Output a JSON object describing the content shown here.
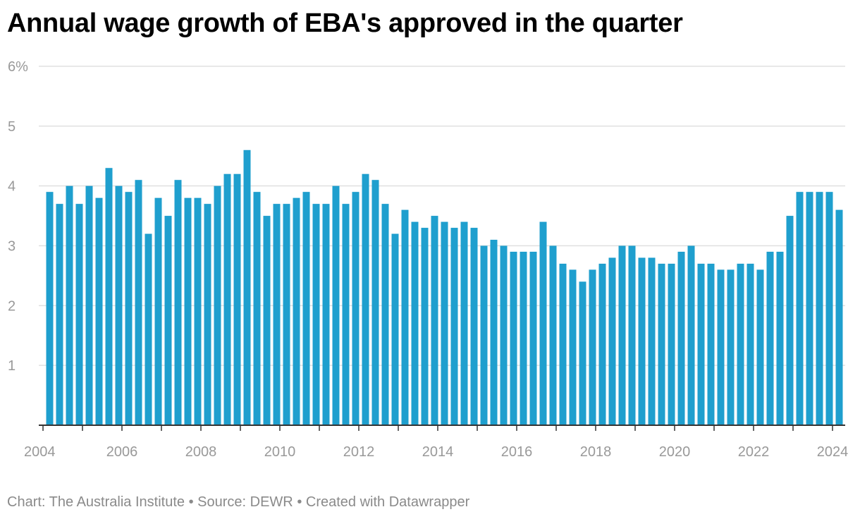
{
  "title": "Annual wage growth of EBA's approved in the quarter",
  "footer": {
    "chart_label": "Chart:",
    "chart_source": "The Australia Institute",
    "separator": "•",
    "source_label": "Source:",
    "source_value": "DEWR",
    "created_with": "Created with Datawrapper"
  },
  "colors": {
    "bar": "#1F9FCE",
    "grid": "#e0e0e0",
    "axis": "#333333",
    "tick_text": "#999999"
  },
  "chart_data": {
    "type": "bar",
    "title": "Annual wage growth of EBA's approved in the quarter",
    "xlabel": "",
    "ylabel": "",
    "ylim": [
      0,
      6
    ],
    "yticks": [
      {
        "value": 6,
        "label": "6%"
      },
      {
        "value": 5,
        "label": "5"
      },
      {
        "value": 4,
        "label": "4"
      },
      {
        "value": 3,
        "label": "3"
      },
      {
        "value": 2,
        "label": "2"
      },
      {
        "value": 1,
        "label": "1"
      }
    ],
    "xticks": [
      {
        "value": 2004,
        "label": "2004"
      },
      {
        "value": 2006,
        "label": "2006"
      },
      {
        "value": 2008,
        "label": "2008"
      },
      {
        "value": 2010,
        "label": "2010"
      },
      {
        "value": 2012,
        "label": "2012"
      },
      {
        "value": 2014,
        "label": "2014"
      },
      {
        "value": 2016,
        "label": "2016"
      },
      {
        "value": 2018,
        "label": "2018"
      },
      {
        "value": 2020,
        "label": "2020"
      },
      {
        "value": 2022,
        "label": "2022"
      },
      {
        "value": 2024,
        "label": "2024"
      }
    ],
    "grid": true,
    "x_start": "2004 Q1",
    "frequency": "quarterly",
    "values": [
      3.9,
      3.7,
      4.0,
      3.7,
      4.0,
      3.8,
      4.3,
      4.0,
      3.9,
      4.1,
      3.2,
      3.8,
      3.5,
      4.1,
      3.8,
      3.8,
      3.7,
      4.0,
      4.2,
      4.2,
      4.6,
      3.9,
      3.5,
      3.7,
      3.7,
      3.8,
      3.9,
      3.7,
      3.7,
      4.0,
      3.7,
      3.9,
      4.2,
      4.1,
      3.7,
      3.2,
      3.6,
      3.4,
      3.3,
      3.5,
      3.4,
      3.3,
      3.4,
      3.3,
      3.0,
      3.1,
      3.0,
      2.9,
      2.9,
      2.9,
      3.4,
      3.0,
      2.7,
      2.6,
      2.4,
      2.6,
      2.7,
      2.8,
      3.0,
      3.0,
      2.8,
      2.8,
      2.7,
      2.7,
      2.9,
      3.0,
      2.7,
      2.7,
      2.6,
      2.6,
      2.7,
      2.7,
      2.6,
      2.9,
      2.9,
      3.5,
      3.9,
      3.9,
      3.9,
      3.9,
      3.6
    ]
  }
}
